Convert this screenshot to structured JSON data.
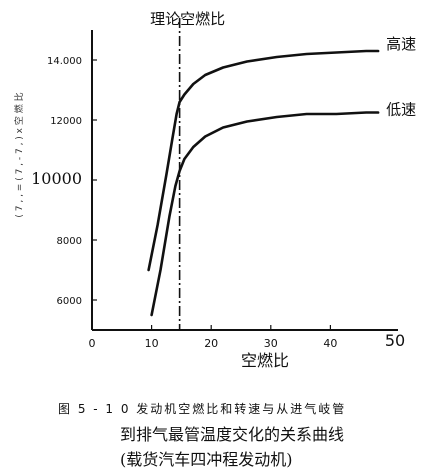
{
  "chart_data": {
    "type": "line",
    "title": "",
    "xlabel": "空燃比",
    "ylabel": "( 7 , , = ( 7 , - 7 , ) x 空 燃 比",
    "xlim": [
      0,
      50
    ],
    "ylim": [
      5000,
      15000
    ],
    "x_ticks": [
      "0",
      "10",
      "20",
      "30",
      "40",
      "50"
    ],
    "x_tick_values": [
      0,
      10,
      20,
      30,
      40,
      50
    ],
    "y_ticks": [
      "6000",
      "8000",
      "10000",
      "12000",
      "14.000"
    ],
    "y_tick_values": [
      6000,
      8000,
      10000,
      12000,
      14000
    ],
    "grid": false,
    "annotations": [
      {
        "label": "理论空燃比",
        "x": 14.7
      }
    ],
    "series": [
      {
        "name": "高速",
        "x": [
          9.5,
          11,
          12.5,
          13.5,
          14.2,
          14.7,
          15.5,
          17,
          19,
          22,
          26,
          31,
          36,
          41,
          46,
          48
        ],
        "y": [
          7000,
          8500,
          10200,
          11400,
          12200,
          12600,
          12850,
          13200,
          13500,
          13750,
          13950,
          14100,
          14200,
          14250,
          14300,
          14300
        ]
      },
      {
        "name": "低速",
        "x": [
          10,
          11.5,
          13,
          14,
          14.7,
          15.5,
          17,
          19,
          22,
          26,
          31,
          36,
          41,
          46,
          48
        ],
        "y": [
          5500,
          7000,
          8800,
          9800,
          10300,
          10700,
          11100,
          11450,
          11750,
          11950,
          12100,
          12200,
          12200,
          12250,
          12250
        ]
      }
    ]
  },
  "caption": {
    "line1": "图 5 - 1 0  发动机空燃比和转速与从进气岐管",
    "line2": "到排气最管温度交化的关系曲线",
    "line3": "(载货汽车四冲程发动机)"
  }
}
